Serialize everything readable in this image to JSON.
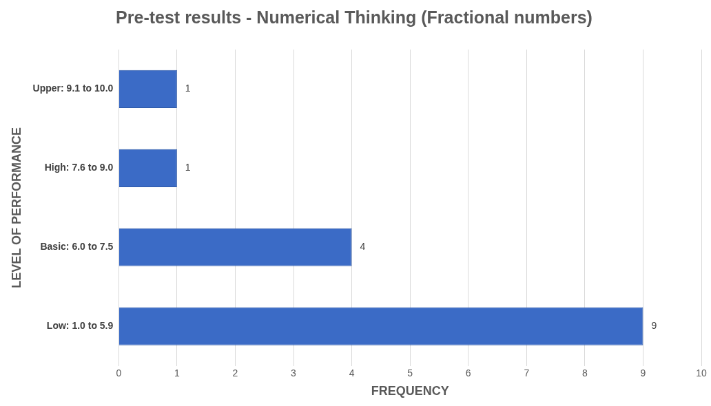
{
  "chart_data": {
    "type": "bar",
    "orientation": "horizontal",
    "title": "Pre-test results - Numerical Thinking (Fractional numbers)",
    "xlabel": "FREQUENCY",
    "ylabel": "LEVEL OF PERFORMANCE",
    "categories": [
      "Upper: 9.1 to 10.0",
      "High: 7.6 to 9.0",
      "Basic: 6.0 to 7.5",
      "Low: 1.0 to 5.9"
    ],
    "values": [
      1,
      1,
      4,
      9
    ],
    "color": "#3b6bc6",
    "xlim": [
      0,
      10
    ],
    "xticks": [
      0,
      1,
      2,
      3,
      4,
      5,
      6,
      7,
      8,
      9,
      10
    ],
    "grid": "x",
    "data_labels": true,
    "legend": false
  }
}
